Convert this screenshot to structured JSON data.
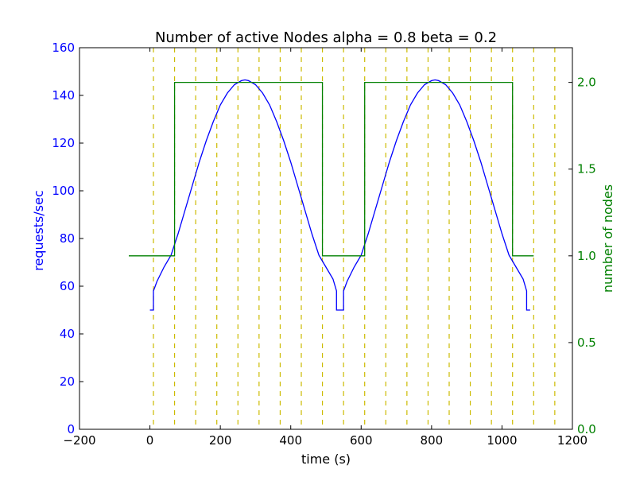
{
  "chart_data": {
    "type": "line",
    "title": "Number of active Nodes alpha = 0.8 beta = 0.2",
    "xlabel": "time (s)",
    "ylabel": "requests/sec",
    "y2label": "number of nodes",
    "xlim": [
      -200,
      1200
    ],
    "ylim": [
      0,
      160
    ],
    "y2lim": [
      0,
      2.2
    ],
    "x_ticks": [
      "−200",
      "0",
      "200",
      "400",
      "600",
      "800",
      "1000",
      "1200"
    ],
    "y_ticks": [
      "0",
      "20",
      "40",
      "60",
      "80",
      "100",
      "120",
      "140",
      "160"
    ],
    "y2_ticks": [
      "0.0",
      "0.5",
      "1.0",
      "1.5",
      "2.0"
    ],
    "grid": false,
    "colors": {
      "requests": "#0000ff",
      "nodes": "#008000",
      "vlines": "#ccbb00"
    },
    "series": [
      {
        "axis": "left",
        "values": [
          [
            0,
            50
          ],
          [
            10,
            50
          ],
          [
            10,
            58
          ],
          [
            20,
            62
          ],
          [
            40,
            68
          ],
          [
            60,
            73
          ],
          [
            80,
            82
          ],
          [
            100,
            92
          ],
          [
            120,
            102
          ],
          [
            140,
            112
          ],
          [
            160,
            121
          ],
          [
            180,
            129
          ],
          [
            200,
            136
          ],
          [
            220,
            141
          ],
          [
            240,
            144.5
          ],
          [
            260,
            146.2
          ],
          [
            270,
            146.5
          ],
          [
            280,
            146.2
          ],
          [
            300,
            144.5
          ],
          [
            320,
            141
          ],
          [
            340,
            136
          ],
          [
            360,
            129
          ],
          [
            380,
            121
          ],
          [
            400,
            112
          ],
          [
            420,
            102
          ],
          [
            440,
            92
          ],
          [
            460,
            82
          ],
          [
            480,
            73
          ],
          [
            500,
            68
          ],
          [
            520,
            63
          ],
          [
            530,
            58
          ],
          [
            530,
            50
          ],
          [
            550,
            50
          ],
          [
            550,
            58
          ],
          [
            560,
            62
          ],
          [
            580,
            68
          ],
          [
            600,
            73
          ],
          [
            620,
            82
          ],
          [
            640,
            92
          ],
          [
            660,
            102
          ],
          [
            680,
            112
          ],
          [
            700,
            121
          ],
          [
            720,
            129
          ],
          [
            740,
            136
          ],
          [
            760,
            141
          ],
          [
            780,
            144.5
          ],
          [
            800,
            146.2
          ],
          [
            810,
            146.5
          ],
          [
            820,
            146.2
          ],
          [
            840,
            144.5
          ],
          [
            860,
            141
          ],
          [
            880,
            136
          ],
          [
            900,
            129
          ],
          [
            920,
            121
          ],
          [
            940,
            112
          ],
          [
            960,
            102
          ],
          [
            980,
            92
          ],
          [
            1000,
            82
          ],
          [
            1020,
            73
          ],
          [
            1040,
            68
          ],
          [
            1060,
            63
          ],
          [
            1070,
            58
          ],
          [
            1070,
            50
          ],
          [
            1080,
            50
          ]
        ]
      },
      {
        "axis": "right",
        "values": [
          [
            -60,
            1
          ],
          [
            70,
            1
          ],
          [
            70,
            2
          ],
          [
            490,
            2
          ],
          [
            490,
            1
          ],
          [
            610,
            1
          ],
          [
            610,
            2
          ],
          [
            1030,
            2
          ],
          [
            1030,
            1
          ],
          [
            1090,
            1
          ]
        ]
      }
    ],
    "vlines": [
      10,
      70,
      130,
      190,
      250,
      310,
      370,
      430,
      490,
      550,
      610,
      670,
      730,
      790,
      850,
      910,
      970,
      1030,
      1090,
      1150
    ]
  }
}
